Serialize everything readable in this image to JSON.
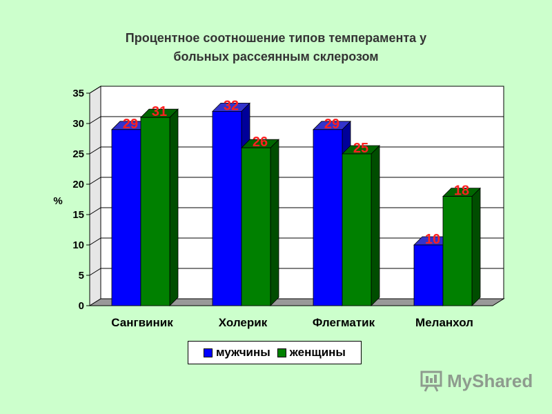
{
  "chart_data": {
    "type": "bar",
    "title_lines": [
      "Процентное соотношение типов темперамента у",
      "больных рассеянным склерозом"
    ],
    "ylabel": "%",
    "xlabel": "",
    "ylim": [
      0,
      35
    ],
    "yticks": [
      0,
      5,
      10,
      15,
      20,
      25,
      30,
      35
    ],
    "grid": true,
    "categories": [
      "Сангвиник",
      "Холерик",
      "Флегматик",
      "Меланхол"
    ],
    "series": [
      {
        "name": "мужчины",
        "values": [
          29,
          32,
          29,
          10
        ],
        "color": "#0000ff"
      },
      {
        "name": "женщины",
        "values": [
          31,
          26,
          25,
          18
        ],
        "color": "#008000"
      }
    ],
    "data_label_color": "#ff2020",
    "legend_position": "bottom"
  },
  "watermark": {
    "text": "MyShared",
    "icon": "presentation-board-icon"
  }
}
